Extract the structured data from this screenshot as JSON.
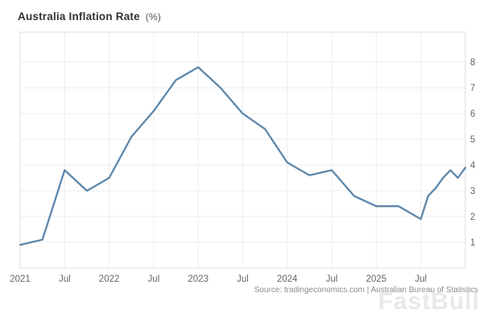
{
  "title": {
    "main": "Australia Inflation Rate",
    "unit": "(%)"
  },
  "source": "Source: tradingeconomics.com | Australian Bureau of Statistics",
  "watermark": "FastBull",
  "chart_data": {
    "type": "line",
    "title": "Australia Inflation Rate (%)",
    "xlabel": "",
    "ylabel": "",
    "legend": "none",
    "grid": true,
    "line_color": "#5c87ab",
    "grid_color": "#ededed",
    "border_color": "#dedede",
    "tick_label_color": "#666666",
    "xlim": [
      2021,
      2026
    ],
    "ylim": [
      0,
      9.16
    ],
    "y_ticks": [
      1,
      2,
      3,
      4,
      5,
      6,
      7,
      8
    ],
    "x_ticks": [
      {
        "t": 2021.0,
        "label": "2021"
      },
      {
        "t": 2021.5,
        "label": "Jul"
      },
      {
        "t": 2022.0,
        "label": "2022"
      },
      {
        "t": 2022.5,
        "label": "Jul"
      },
      {
        "t": 2023.0,
        "label": "2023"
      },
      {
        "t": 2023.5,
        "label": "Jul"
      },
      {
        "t": 2024.0,
        "label": "2024"
      },
      {
        "t": 2024.5,
        "label": "Jul"
      },
      {
        "t": 2025.0,
        "label": "2025"
      },
      {
        "t": 2025.5,
        "label": "Jul"
      }
    ],
    "series": [
      {
        "name": "Australia Inflation Rate (%)",
        "dates": [
          "2021-01",
          "2021-04",
          "2021-07",
          "2021-10",
          "2022-01",
          "2022-04",
          "2022-07",
          "2022-10",
          "2023-01",
          "2023-04",
          "2023-07",
          "2023-10",
          "2024-01",
          "2024-04",
          "2024-07",
          "2024-10",
          "2025-01",
          "2025-04",
          "2025-07",
          "2025-08",
          "2025-09",
          "2025-10",
          "2025-11",
          "2025-12",
          "2026-01"
        ],
        "values": [
          0.9,
          1.1,
          3.8,
          3.0,
          3.5,
          5.1,
          6.1,
          7.3,
          7.8,
          7.0,
          6.0,
          5.4,
          4.1,
          3.6,
          3.8,
          2.8,
          2.4,
          2.4,
          1.9,
          2.8,
          3.1,
          3.5,
          3.8,
          3.5,
          3.9
        ]
      }
    ]
  }
}
